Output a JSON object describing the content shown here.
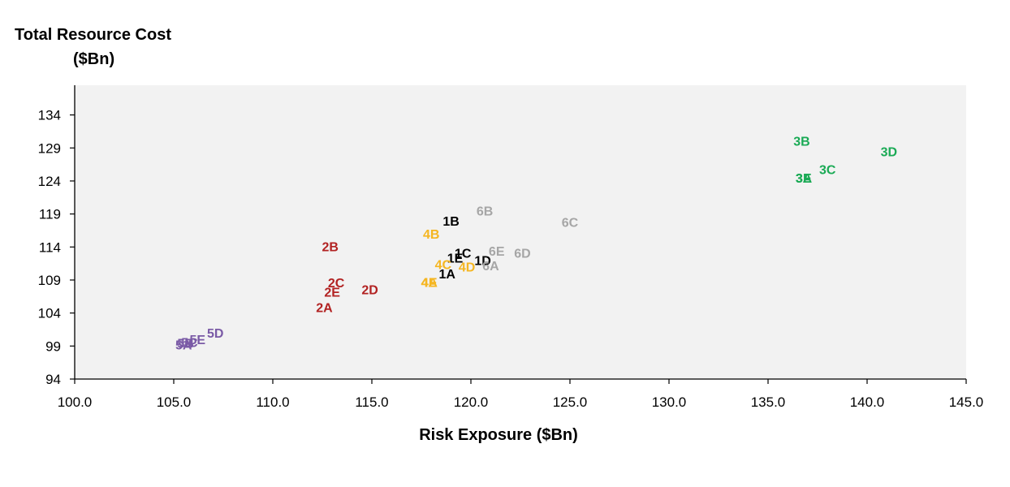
{
  "chart_data": {
    "type": "scatter",
    "ylabel_line1": "Total Resource Cost",
    "ylabel_line2": "($Bn)",
    "xlabel": "Risk Exposure ($Bn)",
    "xlim": [
      100,
      145
    ],
    "ylim": [
      94,
      138.5
    ],
    "x_ticks": [
      "100.0",
      "105.0",
      "110.0",
      "115.0",
      "120.0",
      "125.0",
      "130.0",
      "135.0",
      "140.0",
      "145.0"
    ],
    "x_tick_values": [
      100,
      105,
      110,
      115,
      120,
      125,
      130,
      135,
      140,
      145
    ],
    "y_ticks": [
      "94",
      "99",
      "104",
      "109",
      "114",
      "119",
      "124",
      "129",
      "134"
    ],
    "y_tick_values": [
      94,
      99,
      104,
      109,
      114,
      119,
      124,
      129,
      134
    ],
    "plot_background": "#f2f2f2",
    "grid": false,
    "legend": "none",
    "colors": {
      "group1": "#000000",
      "group2": "#b22222",
      "group3": "#1aaa55",
      "group4": "#f5b622",
      "group5": "#7a5aa6",
      "group6": "#a6a6a6"
    },
    "points": [
      {
        "label": "1A",
        "x": 118.8,
        "y": 110.0,
        "group": "group1"
      },
      {
        "label": "1B",
        "x": 119.0,
        "y": 118.0,
        "group": "group1"
      },
      {
        "label": "1C",
        "x": 119.6,
        "y": 113.1,
        "group": "group1"
      },
      {
        "label": "1D",
        "x": 120.6,
        "y": 112.0,
        "group": "group1"
      },
      {
        "label": "1E",
        "x": 119.2,
        "y": 112.4,
        "group": "group1"
      },
      {
        "label": "2A",
        "x": 112.6,
        "y": 104.9,
        "group": "group2"
      },
      {
        "label": "2B",
        "x": 112.9,
        "y": 114.1,
        "group": "group2"
      },
      {
        "label": "2C",
        "x": 113.2,
        "y": 108.6,
        "group": "group2"
      },
      {
        "label": "2D",
        "x": 114.9,
        "y": 107.6,
        "group": "group2"
      },
      {
        "label": "2E",
        "x": 113.0,
        "y": 107.2,
        "group": "group2"
      },
      {
        "label": "3A",
        "x": 136.8,
        "y": 124.5,
        "group": "group3"
      },
      {
        "label": "3B",
        "x": 136.7,
        "y": 130.1,
        "group": "group3"
      },
      {
        "label": "3C",
        "x": 138.0,
        "y": 125.8,
        "group": "group3"
      },
      {
        "label": "3D",
        "x": 141.1,
        "y": 128.5,
        "group": "group3"
      },
      {
        "label": "3E",
        "x": 136.8,
        "y": 124.5,
        "group": "group3"
      },
      {
        "label": "4A",
        "x": 117.9,
        "y": 108.7,
        "group": "group4"
      },
      {
        "label": "4B",
        "x": 118.0,
        "y": 116.0,
        "group": "group4"
      },
      {
        "label": "4C",
        "x": 118.6,
        "y": 111.4,
        "group": "group4"
      },
      {
        "label": "4D",
        "x": 119.8,
        "y": 111.0,
        "group": "group4"
      },
      {
        "label": "4E",
        "x": 117.9,
        "y": 108.7,
        "group": "group4"
      },
      {
        "label": "5A",
        "x": 105.5,
        "y": 99.2,
        "group": "group5"
      },
      {
        "label": "5B",
        "x": 105.6,
        "y": 99.5,
        "group": "group5"
      },
      {
        "label": "5C",
        "x": 105.8,
        "y": 99.6,
        "group": "group5"
      },
      {
        "label": "5D",
        "x": 107.1,
        "y": 101.0,
        "group": "group5"
      },
      {
        "label": "5E",
        "x": 106.2,
        "y": 100.0,
        "group": "group5"
      },
      {
        "label": "6A",
        "x": 121.0,
        "y": 111.2,
        "group": "group6"
      },
      {
        "label": "6B",
        "x": 120.7,
        "y": 119.5,
        "group": "group6"
      },
      {
        "label": "6C",
        "x": 125.0,
        "y": 117.8,
        "group": "group6"
      },
      {
        "label": "6D",
        "x": 122.6,
        "y": 113.1,
        "group": "group6"
      },
      {
        "label": "6E",
        "x": 121.3,
        "y": 113.4,
        "group": "group6"
      }
    ]
  }
}
